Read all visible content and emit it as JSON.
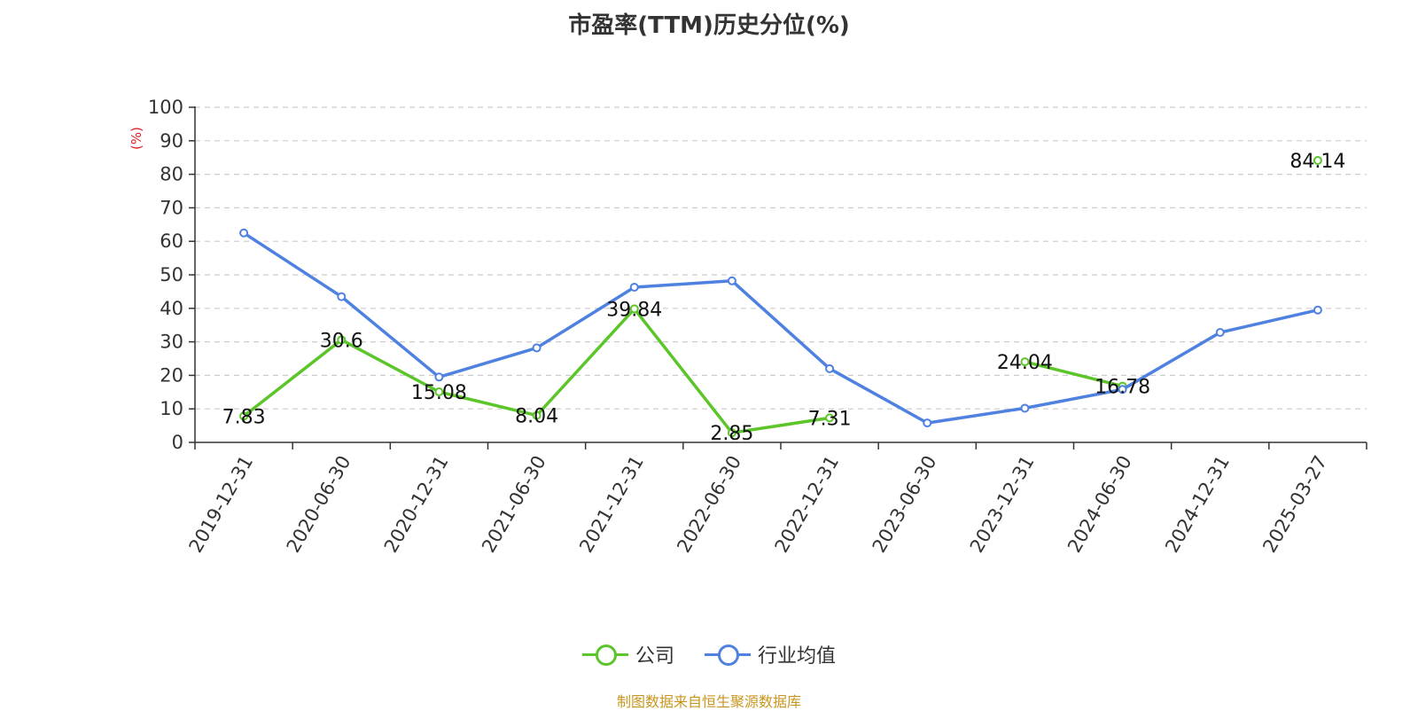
{
  "chart_data": {
    "type": "line",
    "title": "市盈率(TTM)历史分位(%)",
    "ylabel": "(%)",
    "ylim": [
      0,
      100
    ],
    "yticks": [
      0,
      10,
      20,
      30,
      40,
      50,
      60,
      70,
      80,
      90,
      100
    ],
    "grid": true,
    "legend_position": "bottom",
    "categories": [
      "2019-12-31",
      "2020-06-30",
      "2020-12-31",
      "2021-06-30",
      "2021-12-31",
      "2022-06-30",
      "2022-12-31",
      "2023-06-30",
      "2023-12-31",
      "2024-06-30",
      "2024-12-31",
      "2025-03-27"
    ],
    "series": [
      {
        "name": "公司",
        "color": "#5cc52a",
        "values": [
          7.83,
          30.6,
          15.08,
          8.04,
          39.84,
          2.85,
          7.31,
          null,
          24.04,
          16.78,
          null,
          84.14
        ],
        "labels": [
          "7.83",
          "30.6",
          "15.08",
          "8.04",
          "39.84",
          "2.85",
          "7.31",
          null,
          "24.04",
          "16.78",
          null,
          "84.14"
        ]
      },
      {
        "name": "行业均值",
        "color": "#4f81e0",
        "values": [
          62.5,
          43.5,
          19.5,
          28.2,
          46.3,
          48.2,
          22.0,
          5.8,
          10.2,
          15.8,
          32.8,
          39.5
        ]
      }
    ]
  },
  "source": "制图数据来自恒生聚源数据库",
  "colors": {
    "ylabel": "#e02020",
    "source": "#c8961e",
    "grid": "#cccccc",
    "axis": "#333333"
  }
}
